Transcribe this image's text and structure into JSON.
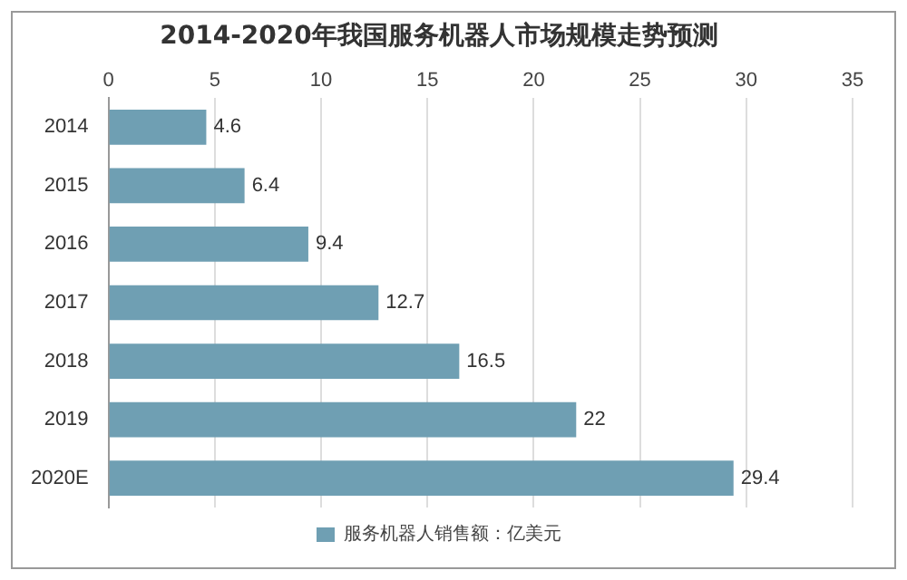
{
  "chart_data": {
    "type": "bar",
    "title": "2014-2020年我国服务机器人市场规模走势预测",
    "orientation": "horizontal",
    "categories": [
      "2014",
      "2015",
      "2016",
      "2017",
      "2018",
      "2019",
      "2020E"
    ],
    "series": [
      {
        "name": "服务机器人销售额：亿美元",
        "color": "#6f9fb3",
        "values": [
          4.6,
          6.4,
          9.4,
          12.7,
          16.5,
          22,
          29.4
        ]
      }
    ],
    "xlim": [
      0,
      35
    ],
    "xticks": [
      0,
      5,
      10,
      15,
      20,
      25,
      30,
      35
    ],
    "grid": "x",
    "legend": "bottom",
    "data_labels": true
  }
}
